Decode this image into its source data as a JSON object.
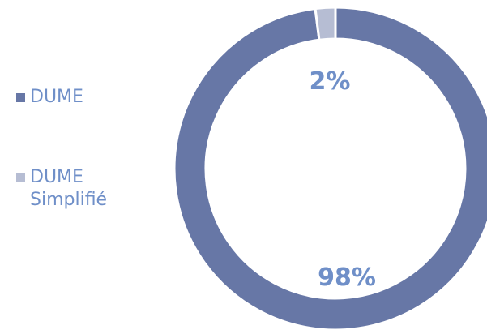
{
  "chart_data": {
    "type": "pie",
    "donut": true,
    "legend_position": "left",
    "slices": [
      {
        "label": "DUME",
        "value": 98,
        "value_label": "98%",
        "color": "#6777a6"
      },
      {
        "label": "DUME Simplifié",
        "value": 2,
        "value_label": "2%",
        "color": "#b6bdd3"
      }
    ],
    "label_color": "#6f8fc8",
    "legend_text_color": "#6f8fc8"
  }
}
